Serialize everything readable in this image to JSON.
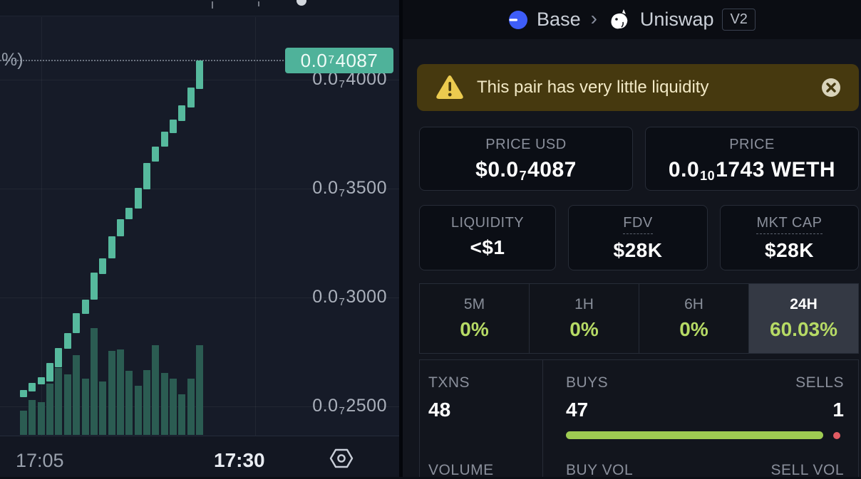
{
  "header": {
    "chain": "Base",
    "separator": "›",
    "dex": "Uniswap",
    "version_badge": "V2"
  },
  "banner": {
    "text": "This pair has very little liquidity",
    "warning_icon": "triangle-exclamation",
    "close_icon": "x-circle"
  },
  "price_cards": [
    {
      "label": "PRICE USD",
      "value_pre": "$0.0",
      "value_sub": "7",
      "value_post": "4087"
    },
    {
      "label": "PRICE",
      "value_pre": "0.0",
      "value_sub": "10",
      "value_post": "1743 WETH"
    }
  ],
  "stat_cards": [
    {
      "label": "LIQUIDITY",
      "value": "<$1",
      "tooltip_underline": false
    },
    {
      "label": "FDV",
      "value": "$28K",
      "tooltip_underline": true
    },
    {
      "label": "MKT CAP",
      "value": "$28K",
      "tooltip_underline": true
    }
  ],
  "timeframes": [
    {
      "label": "5M",
      "value": "0%",
      "active": false
    },
    {
      "label": "1H",
      "value": "0%",
      "active": false
    },
    {
      "label": "6H",
      "value": "0%",
      "active": false
    },
    {
      "label": "24H",
      "value": "60.03%",
      "active": true
    }
  ],
  "txns": {
    "label": "TXNS",
    "value": "48",
    "buys_label": "BUYS",
    "buys": "47",
    "sells_label": "SELLS",
    "sells": "1"
  },
  "volume_row": {
    "label": "VOLUME",
    "buy_label": "BUY VOL",
    "sell_label": "SELL VOL"
  },
  "chart": {
    "partial_axis_label": "%)",
    "time_left": "17:05",
    "time_right": "17:30",
    "price_tag_pre": "0.0",
    "price_tag_sub": "7",
    "price_tag_post": "4087",
    "settings_icon": "hexagon-gear"
  },
  "chart_data": {
    "type": "candlestick_with_volume",
    "price_unit_note": "values are the 4 significant digits after 0.0×7 zeros USD",
    "y_axis_ticks": [
      {
        "value": 4000,
        "pre": "0.0",
        "sub": "7",
        "post": "4000"
      },
      {
        "value": 3500,
        "pre": "0.0",
        "sub": "7",
        "post": "3500"
      },
      {
        "value": 3000,
        "pre": "0.0",
        "sub": "7",
        "post": "3000"
      },
      {
        "value": 2500,
        "pre": "0.0",
        "sub": "7",
        "post": "2500"
      }
    ],
    "current_price": 4087,
    "x_axis_labels": [
      "17:05",
      "17:30"
    ],
    "candles": [
      [
        2542,
        2575
      ],
      [
        2568,
        2608
      ],
      [
        2601,
        2633
      ],
      [
        2614,
        2699
      ],
      [
        2680,
        2768
      ],
      [
        2765,
        2837
      ],
      [
        2837,
        2928
      ],
      [
        2925,
        2990
      ],
      [
        2990,
        3114
      ],
      [
        3108,
        3180
      ],
      [
        3180,
        3281
      ],
      [
        3281,
        3360
      ],
      [
        3360,
        3412
      ],
      [
        3409,
        3503
      ],
      [
        3497,
        3618
      ],
      [
        3624,
        3693
      ],
      [
        3693,
        3761
      ],
      [
        3755,
        3817
      ],
      [
        3810,
        3882
      ],
      [
        3873,
        3964
      ],
      [
        3958,
        4087
      ]
    ],
    "volume_rel": [
      0.23,
      0.33,
      0.31,
      0.48,
      0.63,
      0.57,
      0.75,
      0.53,
      1.0,
      0.5,
      0.79,
      0.8,
      0.6,
      0.46,
      0.61,
      0.84,
      0.58,
      0.53,
      0.38,
      0.53,
      0.84
    ],
    "legend": null,
    "grid": true
  },
  "colors": {
    "candle_up": "#56b99d",
    "volume_bar": "#2b5c52",
    "price_tag_bg": "#4fb29a",
    "lime_green": "#b6da65",
    "buy_bar_green": "#9ecb52",
    "sell_dot_red": "#e25b63",
    "banner_bg": "#46390f",
    "warning_yellow": "#eccb4f"
  }
}
